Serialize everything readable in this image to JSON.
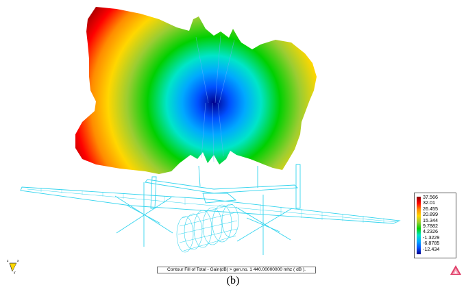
{
  "legend": {
    "ticks": [
      "37.566",
      "32.01",
      "26.455",
      "20.899",
      "15.344",
      "9.7882",
      "4.2326",
      "-1.3229",
      "-6.8785",
      "-12.434"
    ],
    "colors": [
      "#8b0000",
      "#ff0000",
      "#ff8c00",
      "#ffd700",
      "#9acd32",
      "#00d000",
      "#00e5c8",
      "#00a8ff",
      "#0050ff",
      "#00008b"
    ]
  },
  "caption": "Contour Fill of Total - Gain(dB) >  gen.no.   1    440.00000000 mhz  ( dB ).",
  "figure_label": "(b)",
  "axes_triad": {
    "x": "x",
    "y": "y",
    "z": "z"
  },
  "icons": {
    "corner_logo": "triangle-logo-icon"
  },
  "colors": {
    "wireframe": "#33d4ee",
    "background": "#ffffff"
  }
}
